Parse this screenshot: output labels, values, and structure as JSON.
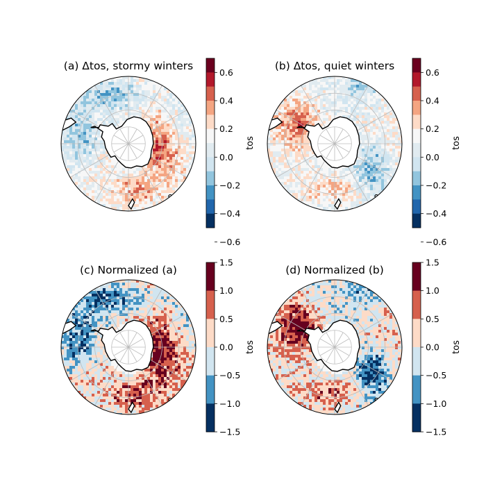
{
  "panels": [
    {
      "id": "a",
      "title": "(a) Δtos, stormy winters",
      "cbar_label": "tos",
      "ticks": [
        "0.6",
        "0.4",
        "0.2",
        "0.0",
        "−0.2",
        "−0.4",
        "−0.6"
      ],
      "colors": [
        "#6b001f",
        "#b2182b",
        "#d6604d",
        "#f4a582",
        "#fddbc7",
        "#f7f7f7",
        "#e1ebf0",
        "#d1e5f0",
        "#92c5de",
        "#4393c3",
        "#2166ac",
        "#053061"
      ],
      "field": "stormy"
    },
    {
      "id": "b",
      "title": "(b) Δtos, quiet winters",
      "cbar_label": "tos",
      "ticks": [
        "0.6",
        "0.4",
        "0.2",
        "0.0",
        "−0.2",
        "−0.4",
        "−0.6"
      ],
      "colors": [
        "#6b001f",
        "#b2182b",
        "#d6604d",
        "#f4a582",
        "#fddbc7",
        "#f7f7f7",
        "#e1ebf0",
        "#d1e5f0",
        "#92c5de",
        "#4393c3",
        "#2166ac",
        "#053061"
      ],
      "field": "quiet"
    },
    {
      "id": "c",
      "title": "(c) Normalized (a)",
      "cbar_label": "tos",
      "ticks": [
        "1.5",
        "1.0",
        "0.5",
        "0.0",
        "−0.5",
        "−1.0",
        "−1.5"
      ],
      "colors": [
        "#67001f",
        "#d6604d",
        "#fddbc7",
        "#d1e5f0",
        "#4393c3",
        "#053061"
      ],
      "field": "stormy"
    },
    {
      "id": "d",
      "title": "(d) Normalized (b)",
      "cbar_label": "tos",
      "ticks": [
        "1.5",
        "1.0",
        "0.5",
        "0.0",
        "−0.5",
        "−1.0",
        "−1.5"
      ],
      "colors": [
        "#67001f",
        "#d6604d",
        "#fddbc7",
        "#d1e5f0",
        "#4393c3",
        "#053061"
      ],
      "field": "quiet"
    }
  ],
  "projection": "south-polar-stereographic",
  "gridlines": true
}
